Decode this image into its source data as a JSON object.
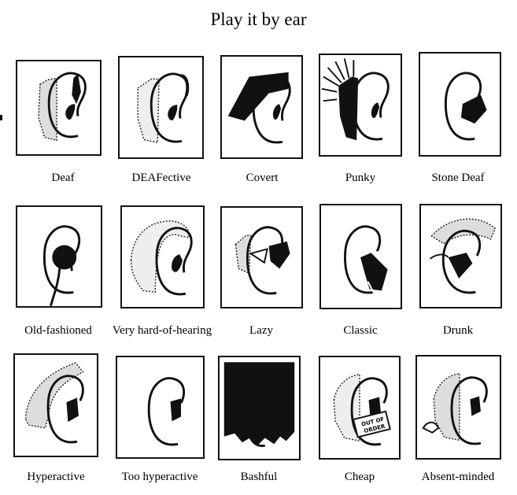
{
  "title": "Play it by ear",
  "panels": [
    {
      "label": "Deaf"
    },
    {
      "label": "DEAFective"
    },
    {
      "label": "Covert"
    },
    {
      "label": "Punky"
    },
    {
      "label": "Stone Deaf"
    },
    {
      "label": "Old-fashioned"
    },
    {
      "label": "Very hard-of-hearing"
    },
    {
      "label": "Lazy"
    },
    {
      "label": "Classic"
    },
    {
      "label": "Drunk"
    },
    {
      "label": "Hyperactive"
    },
    {
      "label": "Too hyperactive"
    },
    {
      "label": "Bashful"
    },
    {
      "label": "Cheap",
      "sign": "OUT OF ORDER"
    },
    {
      "label": "Absent-minded"
    }
  ]
}
